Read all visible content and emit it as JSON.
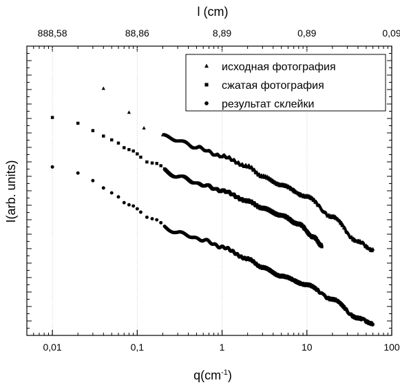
{
  "chart_data": {
    "type": "scatter",
    "title": "",
    "xlabel": "q(cm",
    "xlabel_sup": "-1",
    "xlabel_close": ")",
    "ylabel": "I(arb. units)",
    "x2label": "l (cm)",
    "xscale": "log",
    "xlim": [
      0.005,
      100
    ],
    "ylim": [
      0,
      100
    ],
    "grid": "vertical-major",
    "legend_position": "top-right",
    "x_ticks": [
      {
        "value": 0.01,
        "label": "0,01"
      },
      {
        "value": 0.1,
        "label": "0,1"
      },
      {
        "value": 1,
        "label": "1"
      },
      {
        "value": 10,
        "label": "10"
      },
      {
        "value": 100,
        "label": "100"
      }
    ],
    "x2_ticks": [
      {
        "value": 0.01,
        "label": "888,58"
      },
      {
        "value": 0.1,
        "label": "88,86"
      },
      {
        "value": 1,
        "label": "8,89"
      },
      {
        "value": 10,
        "label": "0,89"
      },
      {
        "value": 100,
        "label": "0,09"
      }
    ],
    "series": [
      {
        "name": "исходная фотография",
        "marker": "triangle",
        "anchors": [
          [
            0.04,
            85
          ],
          [
            0.08,
            77
          ],
          [
            0.12,
            72
          ],
          [
            0.2,
            69
          ],
          [
            0.3,
            67.5
          ],
          [
            0.5,
            65
          ],
          [
            1,
            62
          ],
          [
            2,
            58.5
          ],
          [
            3,
            55
          ],
          [
            5,
            52
          ],
          [
            10,
            48
          ],
          [
            20,
            41
          ],
          [
            40,
            32.5
          ],
          [
            60,
            29.5
          ]
        ]
      },
      {
        "name": "сжатая фотография",
        "marker": "square",
        "anchors": [
          [
            0.01,
            75
          ],
          [
            0.02,
            73
          ],
          [
            0.03,
            70.5
          ],
          [
            0.05,
            67.5
          ],
          [
            0.08,
            64.5
          ],
          [
            0.15,
            59.5
          ],
          [
            0.3,
            55
          ],
          [
            0.6,
            52
          ],
          [
            1,
            50
          ],
          [
            2,
            46.5
          ],
          [
            3,
            44
          ],
          [
            5,
            41.5
          ],
          [
            8,
            38.5
          ],
          [
            12,
            34
          ],
          [
            15,
            31
          ]
        ]
      },
      {
        "name": "результат склейки",
        "marker": "circle",
        "anchors": [
          [
            0.01,
            58
          ],
          [
            0.02,
            56
          ],
          [
            0.03,
            53.5
          ],
          [
            0.05,
            49.5
          ],
          [
            0.08,
            45.5
          ],
          [
            0.15,
            40
          ],
          [
            0.3,
            35.5
          ],
          [
            0.6,
            33
          ],
          [
            1,
            30.5
          ],
          [
            2,
            26.5
          ],
          [
            3,
            23.5
          ],
          [
            5,
            20.5
          ],
          [
            10,
            17.5
          ],
          [
            20,
            12.5
          ],
          [
            40,
            6
          ],
          [
            60,
            4
          ]
        ]
      }
    ]
  }
}
